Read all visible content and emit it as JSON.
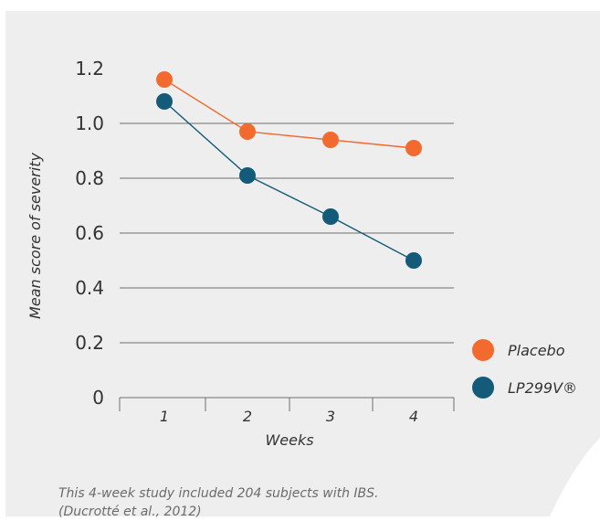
{
  "chart_data": {
    "type": "line",
    "xlabel": "Weeks",
    "ylabel": "Mean score of severity",
    "x": [
      1,
      2,
      3,
      4
    ],
    "x_tick_labels": [
      "1",
      "2",
      "3",
      "4"
    ],
    "ylim": [
      0,
      1.2
    ],
    "y_ticks": [
      0,
      0.2,
      0.4,
      0.6,
      0.8,
      1.0,
      1.2
    ],
    "y_tick_labels": [
      "0",
      "0.2",
      "0.4",
      "0.6",
      "0.8",
      "1.0",
      "1.2"
    ],
    "grid": "horizontal",
    "legend_position": "right",
    "series": [
      {
        "name": "Placebo",
        "color": "#f26a2e",
        "values": [
          1.16,
          0.97,
          0.94,
          0.91
        ]
      },
      {
        "name": "LP299V®",
        "color": "#145b7a",
        "values": [
          1.08,
          0.81,
          0.66,
          0.5
        ]
      }
    ]
  },
  "caption": {
    "line1": "This 4-week study included 204 subjects with IBS.",
    "line2": "(Ducrotté et al., 2012)"
  },
  "colors": {
    "card_background": "#eeeeee",
    "placebo": "#f26a2e",
    "lp299v": "#145b7a",
    "grid": "#6e6e6e",
    "caption_text": "#6b6b6b"
  }
}
